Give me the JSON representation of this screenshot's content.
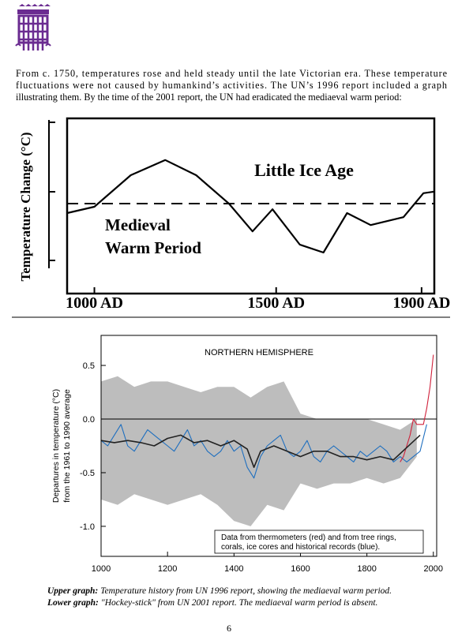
{
  "paragraph": [
    "From c. 1750, temperatures rose and held steady until the late Victorian era. These temperature",
    "fluctuations were not caused by humankind’s activities. The UN’s 1996 report included a graph",
    "illustrating them. By the time of the 2001 report, the UN had eradicated the mediaeval warm period:"
  ],
  "chart_data": [
    {
      "type": "line",
      "y_label": "Temperature Change (°C)",
      "annotations": [
        "Little Ice Age",
        "Medieval",
        "Warm Period"
      ],
      "x": [
        925,
        1000,
        1100,
        1195,
        1280,
        1370,
        1435,
        1490,
        1565,
        1630,
        1695,
        1760,
        1850,
        1905,
        1935
      ],
      "values": [
        -0.3,
        -0.1,
        0.9,
        1.38,
        0.9,
        0,
        -0.88,
        -0.18,
        -1.3,
        -1.55,
        -0.3,
        -0.68,
        -0.43,
        0.33,
        0.38
      ],
      "color": "#000000",
      "reference_line": 0,
      "xlim": [
        925,
        1935
      ],
      "ylim": [
        -2.85,
        2.7
      ],
      "xticks": [
        {
          "value": 1000,
          "label": "1000 AD"
        },
        {
          "value": 1500,
          "label": "1500 AD"
        },
        {
          "value": 1900,
          "label": "1900 AD"
        }
      ]
    },
    {
      "type": "line",
      "title": "NORTHERN HEMISPHERE",
      "y_label": [
        "Departures in temperature (°C)",
        "from the 1961 to 1990 average"
      ],
      "annotation": [
        "Data from thermometers (red) and from tree rings,",
        "corals, ice cores and historical records (blue)."
      ],
      "band": {
        "color": "#bdbdbd",
        "x": [
          1000,
          1050,
          1100,
          1150,
          1200,
          1250,
          1300,
          1350,
          1400,
          1450,
          1500,
          1550,
          1600,
          1650,
          1700,
          1750,
          1800,
          1850,
          1900,
          1950
        ],
        "upper": [
          0.35,
          0.4,
          0.3,
          0.35,
          0.35,
          0.3,
          0.25,
          0.3,
          0.3,
          0.2,
          0.3,
          0.35,
          0.05,
          0,
          0,
          0,
          0,
          -0.05,
          -0.1,
          0
        ],
        "lower": [
          -0.75,
          -0.8,
          -0.7,
          -0.75,
          -0.8,
          -0.75,
          -0.7,
          -0.8,
          -0.95,
          -1.0,
          -0.8,
          -0.85,
          -0.6,
          -0.65,
          -0.6,
          -0.6,
          -0.55,
          -0.6,
          -0.55,
          -0.35
        ]
      },
      "series": [
        {
          "color": "#1f6fbf",
          "x": [
            1000,
            1020,
            1040,
            1060,
            1080,
            1100,
            1120,
            1140,
            1160,
            1180,
            1200,
            1220,
            1240,
            1260,
            1280,
            1300,
            1320,
            1340,
            1360,
            1380,
            1400,
            1420,
            1440,
            1460,
            1480,
            1500,
            1520,
            1540,
            1560,
            1580,
            1600,
            1620,
            1640,
            1660,
            1680,
            1700,
            1720,
            1740,
            1760,
            1780,
            1800,
            1820,
            1840,
            1860,
            1880,
            1900,
            1920,
            1940,
            1960,
            1980
          ],
          "values": [
            -0.2,
            -0.25,
            -0.15,
            -0.05,
            -0.25,
            -0.3,
            -0.2,
            -0.1,
            -0.15,
            -0.2,
            -0.25,
            -0.3,
            -0.2,
            -0.1,
            -0.25,
            -0.2,
            -0.3,
            -0.35,
            -0.3,
            -0.2,
            -0.3,
            -0.25,
            -0.45,
            -0.55,
            -0.35,
            -0.25,
            -0.2,
            -0.15,
            -0.3,
            -0.35,
            -0.3,
            -0.2,
            -0.35,
            -0.4,
            -0.3,
            -0.25,
            -0.3,
            -0.35,
            -0.4,
            -0.3,
            -0.35,
            -0.3,
            -0.25,
            -0.3,
            -0.4,
            -0.35,
            -0.4,
            -0.35,
            -0.3,
            -0.05
          ]
        },
        {
          "color": "#d0203a",
          "x": [
            1900,
            1910,
            1920,
            1930,
            1940,
            1950,
            1960,
            1970,
            1980,
            1990,
            2000
          ],
          "values": [
            -0.4,
            -0.35,
            -0.25,
            -0.15,
            0,
            -0.05,
            -0.05,
            -0.05,
            0.1,
            0.3,
            0.6
          ]
        },
        {
          "color": "#222222",
          "x": [
            1000,
            1040,
            1080,
            1120,
            1160,
            1200,
            1240,
            1280,
            1320,
            1360,
            1400,
            1440,
            1460,
            1480,
            1520,
            1560,
            1600,
            1640,
            1680,
            1720,
            1760,
            1800,
            1840,
            1880,
            1960
          ],
          "values": [
            -0.2,
            -0.22,
            -0.2,
            -0.22,
            -0.25,
            -0.18,
            -0.15,
            -0.22,
            -0.2,
            -0.25,
            -0.2,
            -0.28,
            -0.45,
            -0.3,
            -0.25,
            -0.3,
            -0.35,
            -0.3,
            -0.3,
            -0.35,
            -0.35,
            -0.38,
            -0.35,
            -0.38,
            -0.15
          ]
        }
      ],
      "reference_line": 0,
      "xlim": [
        1000,
        2010
      ],
      "ylim": [
        -1.28,
        0.78
      ],
      "xticks": [
        1000,
        1200,
        1400,
        1600,
        1800,
        2000
      ],
      "yticks": [
        0.5,
        {
          "value": 0,
          "label": "0.0"
        },
        -0.5,
        {
          "value": -1,
          "label": "-1.0"
        }
      ]
    }
  ],
  "captions": [
    {
      "label": "Upper graph:",
      "text": "Temperature history from UN 1996 report, showing the mediaeval warm period."
    },
    {
      "label": "Lower graph:",
      "text": "\"Hockey-stick\" from UN 2001 report. The mediaeval warm period is absent."
    }
  ],
  "page_number": "6"
}
